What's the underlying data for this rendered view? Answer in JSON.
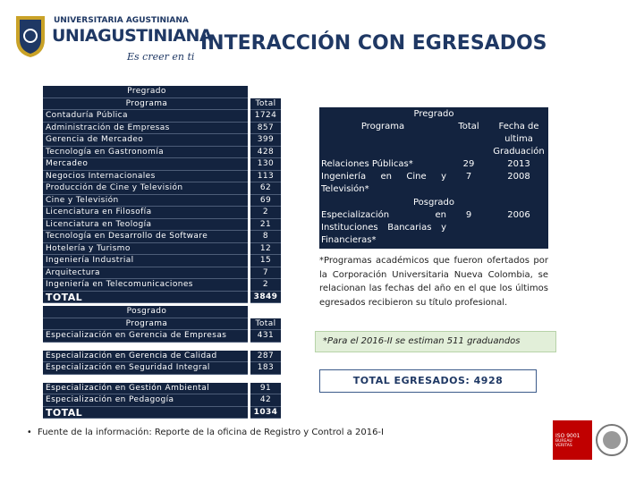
{
  "header": {
    "logo_line1": "UNIVERSITARIA AGUSTINIANA",
    "logo_line2": "UNIAGUSTINIANA",
    "logo_tagline": "Es creer en ti",
    "title": "INTERACCIÓN CON EGRESADOS"
  },
  "pregrado": {
    "section": "Pregrado",
    "program_header": "Programa",
    "total_header": "Total",
    "rows": [
      [
        "Contaduría Pública",
        1724
      ],
      [
        "Administración de Empresas",
        857
      ],
      [
        "Gerencia de Mercadeo",
        399
      ],
      [
        "Tecnología en Gastronomía",
        428
      ],
      [
        "Mercadeo",
        130
      ],
      [
        "Negocios Internacionales",
        113
      ],
      [
        "Producción de Cine y Televisión",
        62
      ],
      [
        "Cine y Televisión",
        69
      ],
      [
        "Licenciatura en Filosofía",
        2
      ],
      [
        "Licenciatura en Teología",
        21
      ],
      [
        "Tecnología en Desarrollo de Software",
        8
      ],
      [
        "Hotelería y Turismo",
        12
      ],
      [
        "Ingeniería Industrial",
        15
      ],
      [
        "Arquitectura",
        7
      ],
      [
        "Ingeniería en Telecomunicaciones",
        2
      ]
    ],
    "total_label": "TOTAL",
    "total_value": 3849
  },
  "posgrado": {
    "section": "Posgrado",
    "program_header": "Programa",
    "total_header": "Total",
    "rows": [
      [
        "Especialización en Gerencia de Empresas",
        431
      ],
      [
        "Especialización en Gerencia de Calidad",
        287
      ],
      [
        "Especialización en Seguridad Integral",
        183
      ],
      [
        "Especialización en Gestión Ambiental",
        91
      ],
      [
        "Especialización en  Pedagogía",
        42
      ]
    ],
    "total_label": "TOTAL",
    "total_value": 1034
  },
  "closed_programs": {
    "pregrado_section": "Pregrado",
    "program_header": "Programa",
    "total_header": "Total",
    "date_header": "Fecha de ultima Graduación",
    "pregrado_rows": [
      [
        "Relaciones Públicas*",
        29,
        2013
      ],
      [
        "Ingeniería en Cine y Televisión*",
        7,
        2008
      ]
    ],
    "posgrado_section": "Posgrado",
    "posgrado_rows": [
      [
        "Especialización en Instituciones Bancarias y Financieras*",
        9,
        2006
      ]
    ]
  },
  "note": "*Programas académicos que fueron ofertados por la Corporación Universitaria Nueva Colombia, se relacionan las fechas del año en el que los últimos egresados recibieron su título profesional.",
  "estimate": "*Para el 2016-II se estiman 511 graduandos",
  "grand_total": "TOTAL EGRESADOS: 4928",
  "footer": "Fuente de la información: Reporte de la oficina de Registro y Control a 2016-I",
  "certification": {
    "standard": "ISO 9001",
    "body": "BUREAU VERITAS"
  }
}
